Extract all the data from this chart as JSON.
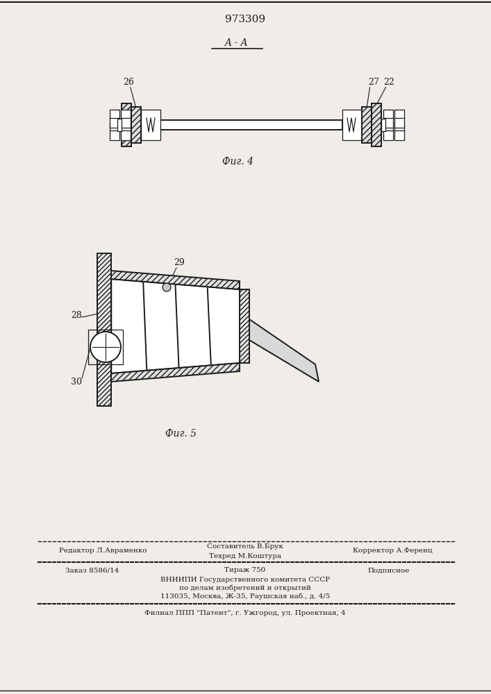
{
  "patent_number": "973309",
  "section_label": "A - A",
  "fig4_label": "Фиг. 4",
  "fig5_label": "Фиг. 5",
  "footer_line1_left": "Редактор Л.Авраменко",
  "footer_line1_center": "Составитель В.Брук",
  "footer_line2_center": "Техред М.Коштура",
  "footer_line2_right": "Корректор А.Ференц",
  "footer_order": "Заказ 8586/14",
  "footer_tirazh": "Тираж 750",
  "footer_podpis": "Подписное",
  "footer_vniipni": "ВНИИПИ Государственного комитета СССР",
  "footer_po_delam": "по делам изобретений и открытий",
  "footer_address": "113035, Москва, Ж-35, Раушская наб., д. 4/5",
  "footer_filial": "Филиал ППП \"Патент\", г. Ужгород, ул. Проектная, 4",
  "bg_color": "#f0ede8",
  "line_color": "#1a1a1a",
  "label26": "26",
  "label27": "27",
  "label22": "22",
  "label28": "28",
  "label29": "29",
  "label30": "30"
}
